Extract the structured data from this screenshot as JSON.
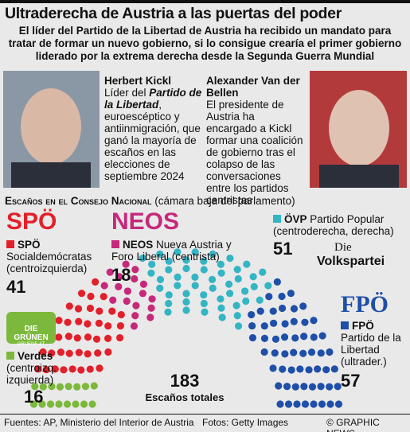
{
  "header": {
    "title": "Ultraderecha de Austria a las puertas del poder",
    "subtitle": "El líder del Partido de la Libertad de Austria ha recibido un mandato para tratar de formar un nuevo gobierno, si lo consigue crearía el primer gobierno liderado por la extrema derecha desde la Segunda Guerra Mundial"
  },
  "kickl": {
    "name": "Herbert Kickl",
    "desc": [
      "Líder del ",
      "Partido de la Libertad",
      ", euroescéptico y antiinmigración, que ganó la mayoría de escaños en las elecciones de septiembre 2024"
    ]
  },
  "van_der_bellen": {
    "name": "Alexander Van der Bellen",
    "desc": "El presidente de Austria ha encargado a Kickl formar una coalición de gobierno tras el colapso de las conversaciones entre los partidos centristas"
  },
  "seats": {
    "heading": "Escaños en el Consejo Nacional",
    "note": "(cámara baja del parlamento)",
    "total": 183,
    "total_label": "Escaños totales",
    "parties": [
      {
        "logo": "DIE GRÜNEN",
        "logo_sub": "GRUENE.AT",
        "name": "Verdes",
        "desc": "(centroizq. izquierda)",
        "seats": 16,
        "color": "#7cb83c"
      },
      {
        "logo": "SPÖ",
        "name": "SPÖ",
        "desc": "Socialdemócratas (centroizquierda)",
        "seats": 41,
        "color": "#e2202a"
      },
      {
        "logo": "NEOS",
        "name": "NEOS",
        "desc": "Nueva Austria y Foro Liberal (centrista)",
        "seats": 18,
        "color": "#c6287a"
      },
      {
        "logo": "Die",
        "logo_sub": "Volkspartei",
        "name": "ÖVP",
        "desc": "Partido Popular (centroderecha, derecha)",
        "seats": 51,
        "color": "#33b5c4"
      },
      {
        "logo": "FPÖ",
        "name": "FPÖ",
        "desc": "Partido de la Libertad (ultrader.)",
        "seats": 57,
        "color": "#1f4fa8"
      }
    ]
  },
  "footer": {
    "sources": "Fuentes: AP, Ministerio del Interior de Austria",
    "photos": "Fotos: Getty Images",
    "credit": "© GRAPHIC NEWS"
  }
}
